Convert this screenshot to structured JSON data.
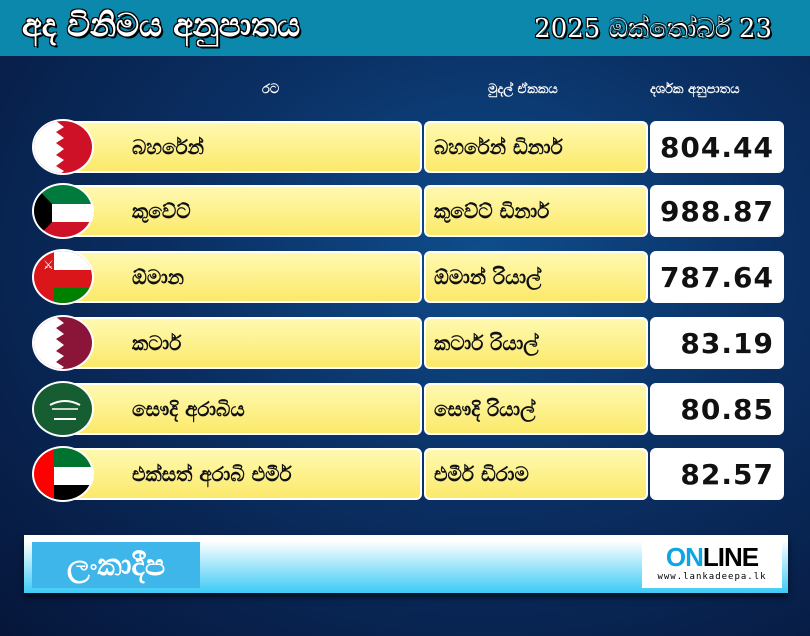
{
  "header": {
    "title": "අද විනිමය අනුපාතය",
    "date": "2025 ඔක්තෝබර් 23"
  },
  "columns": {
    "country": "රට",
    "currency": "මුදල් ඒකකය",
    "rate": "දර්ශක අනුපාතය"
  },
  "rows": [
    {
      "country": "බහරේන්",
      "currency": "බහරේන් ඩිනාර්",
      "rate": "804.44",
      "flag": "bahrain-flag"
    },
    {
      "country": "කුවේට්",
      "currency": "කුවේට් ඩිනාර්",
      "rate": "988.87",
      "flag": "kuwait-flag"
    },
    {
      "country": "ඕමාන",
      "currency": "ඕමාන් රියාල්",
      "rate": "787.64",
      "flag": "oman-flag"
    },
    {
      "country": "කටාර්",
      "currency": "කටාර් රියාල්",
      "rate": "83.19",
      "flag": "qatar-flag"
    },
    {
      "country": "සෞදි අරාබිය",
      "currency": "සෞදි රියාල්",
      "rate": "80.85",
      "flag": "saudi-arabia-flag"
    },
    {
      "country": "එක්සත් අරාබි එමීර්",
      "currency": "එමීර් ඩිරාම",
      "rate": "82.57",
      "flag": "uae-flag"
    }
  ],
  "footer": {
    "logo": "ලංකාදීප",
    "online_a": "ON",
    "online_b": "LINE",
    "url": "www.lankadeepa.lk"
  }
}
